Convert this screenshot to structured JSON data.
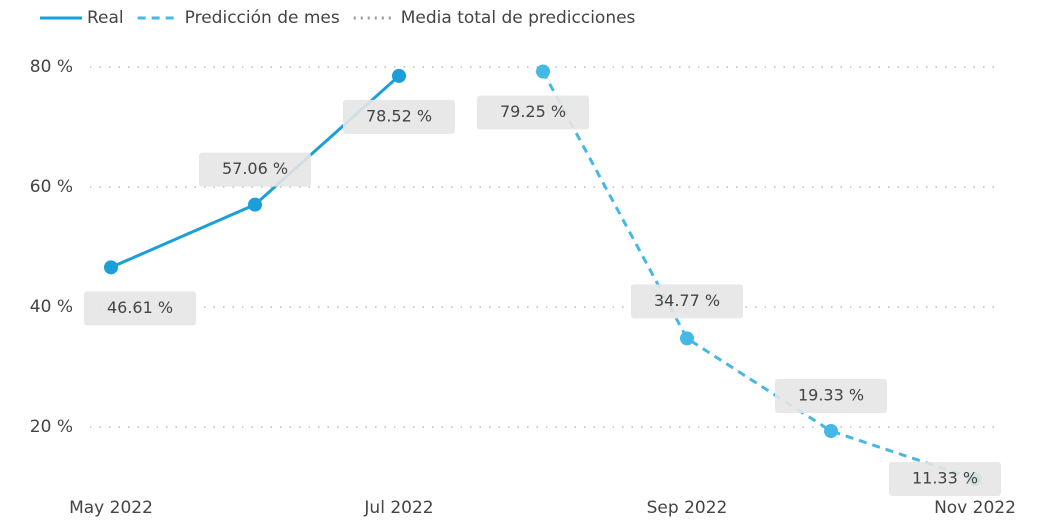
{
  "chart_data": {
    "type": "line",
    "categories": [
      "May 2022",
      null,
      "Jul 2022",
      null,
      "Sep 2022",
      null,
      "Nov 2022"
    ],
    "series": [
      {
        "name": "Real",
        "color": "#1a9fd8",
        "dash": "solid",
        "values": [
          46.61,
          57.06,
          78.52,
          null,
          null,
          null,
          null
        ],
        "value_labels": [
          "46.61 %",
          "57.06 %",
          "78.52 %",
          null,
          null,
          null,
          null
        ]
      },
      {
        "name": "Predicción de mes",
        "color": "#45b8e6",
        "dash": "dashed",
        "values": [
          null,
          null,
          null,
          79.25,
          34.77,
          19.33,
          11.33
        ],
        "value_labels": [
          null,
          null,
          null,
          "79.25 %",
          "34.77 %",
          "19.33 %",
          "11.33 %"
        ]
      },
      {
        "name": "Media total de predicciones",
        "color": "#9a9a9a",
        "dash": "dotted",
        "values": [
          null,
          null,
          null,
          null,
          null,
          null,
          null
        ]
      }
    ],
    "ylim": [
      10,
      83
    ],
    "yticks": [
      {
        "value": 20,
        "label": "20 %"
      },
      {
        "value": 40,
        "label": "40 %"
      },
      {
        "value": 60,
        "label": "60 %"
      },
      {
        "value": 80,
        "label": "80 %"
      }
    ],
    "grid": true,
    "legend": "top-left"
  }
}
